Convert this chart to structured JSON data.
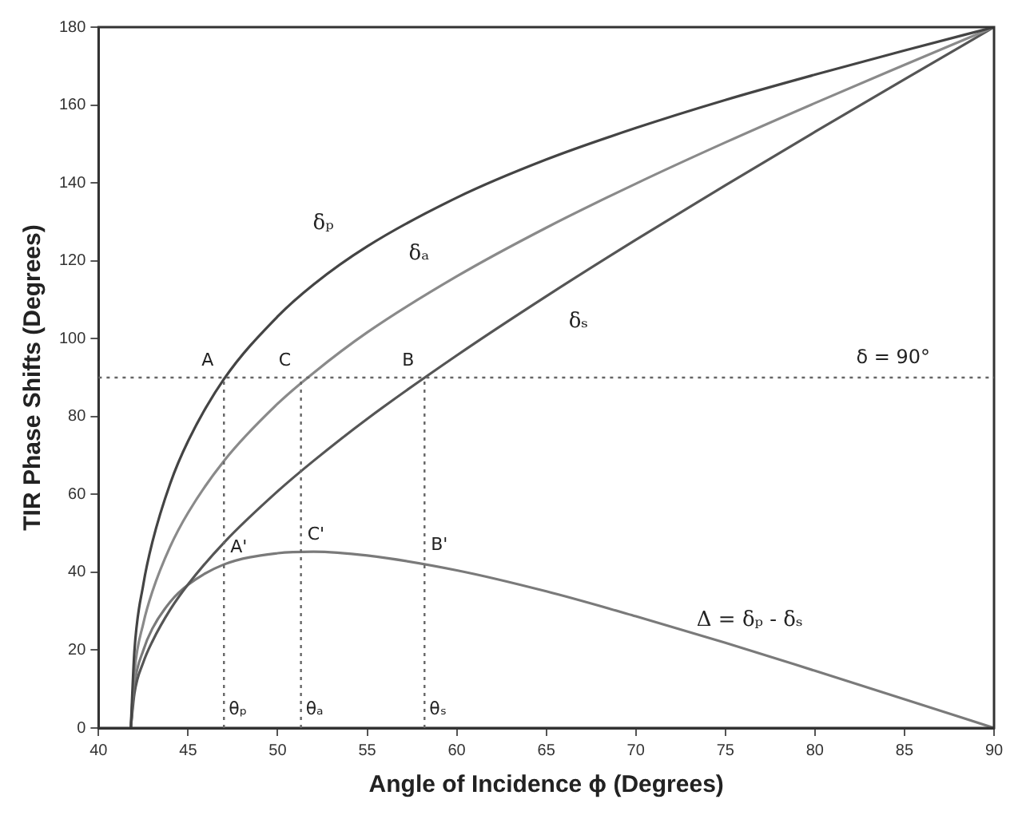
{
  "chart_data": {
    "type": "line",
    "xlabel": "Angle of Incidence ϕ (Degrees)",
    "ylabel": "TIR Phase Shifts (Degrees)",
    "x": [
      41.8,
      42,
      42.5,
      43,
      44,
      45,
      47,
      50,
      52,
      55,
      60,
      65,
      70,
      75,
      80,
      85,
      90
    ],
    "series": [
      {
        "name": "δₚ",
        "color": "#444444",
        "values": [
          0,
          19.7,
          36.9,
          47.7,
          62.8,
          73.7,
          89.6,
          105.7,
          113.9,
          123.7,
          136.2,
          146.0,
          154.1,
          161.3,
          167.8,
          174.0,
          180
        ]
      },
      {
        "name": "δₐ",
        "color": "#8a8a8a",
        "values": [
          0,
          14.3,
          26.9,
          35.0,
          46.6,
          55.3,
          68.6,
          83.3,
          91.2,
          101.6,
          116.0,
          128.5,
          139.8,
          150.4,
          160.5,
          170.3,
          180
        ]
      },
      {
        "name": "δₛ",
        "color": "#555555",
        "values": [
          0,
          8.8,
          16.9,
          22.2,
          30.4,
          36.9,
          47.6,
          60.8,
          68.6,
          79.4,
          95.7,
          110.9,
          125.4,
          139.4,
          153.1,
          166.6,
          180
        ]
      },
      {
        "name": "Δ = δₚ - δₛ",
        "color": "#7a7a7a",
        "values": [
          0,
          10.9,
          20.0,
          25.5,
          32.4,
          36.8,
          42.0,
          44.9,
          45.3,
          44.3,
          40.5,
          35.1,
          28.7,
          21.9,
          14.7,
          7.4,
          0
        ]
      }
    ],
    "xlim": [
      40,
      90
    ],
    "xticks": [
      40,
      45,
      50,
      55,
      60,
      65,
      70,
      75,
      80,
      85,
      90
    ],
    "ylim": [
      0,
      180
    ],
    "yticks": [
      0,
      20,
      40,
      60,
      80,
      100,
      120,
      140,
      160,
      180
    ],
    "grid": false,
    "legend": false,
    "marker": "none",
    "line_style": "solid",
    "ref_lines": [
      {
        "axis": "y",
        "value": 90,
        "label": "δ = 90°",
        "line_style": "dotted",
        "color": "#666666"
      },
      {
        "axis": "x",
        "value": 47,
        "line_style": "dotted",
        "color": "#666666"
      },
      {
        "axis": "x",
        "value": 51.3,
        "line_style": "dotted",
        "color": "#666666"
      },
      {
        "axis": "x",
        "value": 58.2,
        "line_style": "dotted",
        "color": "#666666"
      }
    ],
    "annotations": [
      {
        "text": "A",
        "x": 47,
        "y": 90
      },
      {
        "text": "C",
        "x": 51.3,
        "y": 90
      },
      {
        "text": "B",
        "x": 58.2,
        "y": 90
      },
      {
        "text": "A'",
        "x": 47,
        "y": 42
      },
      {
        "text": "C'",
        "x": 51.3,
        "y": 45.3
      },
      {
        "text": "B'",
        "x": 58.2,
        "y": 42.6
      },
      {
        "text": "θₚ",
        "x": 47,
        "y": 0
      },
      {
        "text": "θₐ",
        "x": 51.3,
        "y": 0
      },
      {
        "text": "θₛ",
        "x": 58.2,
        "y": 0
      }
    ]
  }
}
